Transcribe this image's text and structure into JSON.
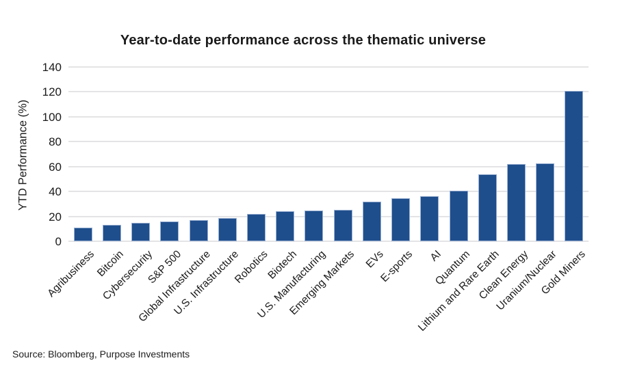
{
  "title": "Year-to-date performance across the thematic universe",
  "source": "Source: Bloomberg, Purpose Investments",
  "colors": {
    "bar_fill": "#1f4e8c",
    "bar_edge": "#9bb1d3",
    "gridline": "#e4e4e6",
    "text": "#1a1a1a",
    "background": "#ffffff"
  },
  "chart_data": {
    "type": "bar",
    "title": "Year-to-date performance across the thematic universe",
    "xlabel": "",
    "ylabel": "YTD Performance (%)",
    "categories": [
      "Agribusiness",
      "Bitcoin",
      "Cybersecurity",
      "S&P 500",
      "Global Infrastructure",
      "U.S. Infrastructure",
      "Robotics",
      "Biotech",
      "U.S. Manufacturing",
      "Emerging Markets",
      "EVs",
      "E-sports",
      "AI",
      "Quantum",
      "Lithium and Rare Earth",
      "Clean Energy",
      "Uranium/Nuclear",
      "Gold Miners"
    ],
    "values": [
      11,
      13,
      15,
      16,
      17,
      18.5,
      22,
      24,
      24.5,
      25.5,
      32,
      34.5,
      36.5,
      40.5,
      54,
      62,
      62.5,
      121
    ],
    "ylim": [
      0,
      140
    ],
    "yticks": [
      0,
      20,
      40,
      60,
      80,
      100,
      120,
      140
    ],
    "grid": "horizontal",
    "legend": "none",
    "x_tick_rotation": 45
  }
}
